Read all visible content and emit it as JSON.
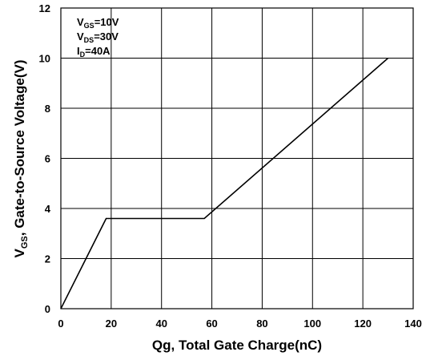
{
  "chart_data": {
    "type": "line",
    "xlabel": "Qg, Total Gate Charge(nC)",
    "ylabel": {
      "main": "V",
      "sub": "GS",
      "rest": ", Gate-to-Source Voltage(V)"
    },
    "xlim": [
      0,
      140
    ],
    "ylim": [
      0,
      12
    ],
    "xticks": [
      "0",
      "20",
      "40",
      "60",
      "80",
      "100",
      "120",
      "140"
    ],
    "yticks": [
      "0",
      "2",
      "4",
      "6",
      "8",
      "10",
      "12"
    ],
    "grid": true,
    "series": [
      {
        "x": [
          0,
          18,
          57,
          130
        ],
        "y": [
          0,
          3.6,
          3.6,
          10
        ],
        "color": "#000000"
      }
    ],
    "annotations": [
      {
        "main": "V",
        "sub": "GS",
        "rest": "=10V"
      },
      {
        "main": "V",
        "sub": "DS",
        "rest": "=30V"
      },
      {
        "main": "I",
        "sub": "D",
        "rest": "=40A"
      }
    ]
  }
}
